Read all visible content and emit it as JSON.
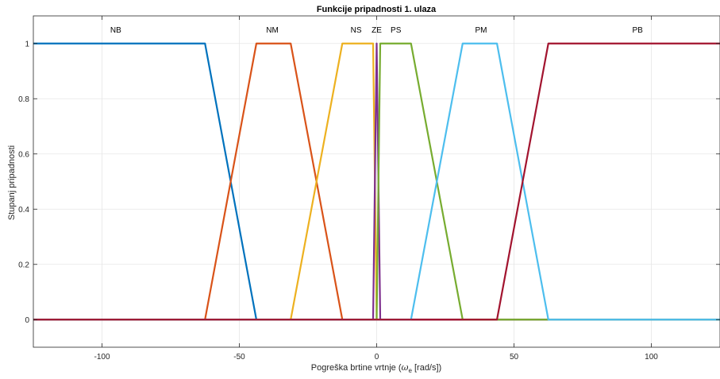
{
  "chart_data": {
    "type": "line",
    "title": "Funkcije pripadnosti 1. ulaza",
    "xlabel_parts": [
      "Pogreška brtine vrtnje (",
      "ω",
      "e",
      " [rad/s])"
    ],
    "ylabel": "Stupanj pripadnosti",
    "xlim": [
      -125,
      125
    ],
    "ylim": [
      -0.1,
      1.1
    ],
    "grid": true,
    "xticks": [
      -100,
      -50,
      0,
      50,
      100
    ],
    "xtick_labels": [
      "-100",
      "-50",
      "0",
      "50",
      "100"
    ],
    "yticks": [
      0,
      0.2,
      0.4,
      0.6,
      0.8,
      1
    ],
    "ytick_labels": [
      "0",
      "0.2",
      "0.4",
      "0.6",
      "0.8",
      "1"
    ],
    "series": [
      {
        "name": "NB",
        "color": "#0072BD",
        "label_x": -95,
        "x": [
          -125,
          -62.5,
          -43.8,
          125
        ],
        "y": [
          1,
          1,
          0,
          0
        ]
      },
      {
        "name": "NM",
        "color": "#D95319",
        "label_x": -38,
        "x": [
          -125,
          -62.5,
          -43.8,
          -31.3,
          -12.5,
          125
        ],
        "y": [
          0,
          0,
          1,
          1,
          0,
          0
        ]
      },
      {
        "name": "NS",
        "color": "#EDB120",
        "label_x": -7.5,
        "x": [
          -125,
          -31.3,
          -12.5,
          -1.3,
          0,
          125
        ],
        "y": [
          0,
          0,
          1,
          1,
          0,
          0
        ]
      },
      {
        "name": "ZE",
        "color": "#7E2F8E",
        "label_x": 0,
        "x": [
          -125,
          -1.3,
          0,
          1.3,
          125
        ],
        "y": [
          0,
          0,
          1,
          0,
          0
        ]
      },
      {
        "name": "PS",
        "color": "#77AC30",
        "label_x": 7,
        "x": [
          -125,
          0,
          1.3,
          12.5,
          31.3,
          125
        ],
        "y": [
          0,
          0,
          1,
          1,
          0,
          0
        ]
      },
      {
        "name": "PM",
        "color": "#4DBEEE",
        "label_x": 38,
        "x": [
          -125,
          12.5,
          31.3,
          43.8,
          62.5,
          125
        ],
        "y": [
          0,
          0,
          1,
          1,
          0,
          0
        ]
      },
      {
        "name": "PB",
        "color": "#A2142F",
        "label_x": 95,
        "x": [
          -125,
          43.8,
          62.5,
          125
        ],
        "y": [
          0,
          0,
          1,
          1
        ]
      }
    ]
  }
}
